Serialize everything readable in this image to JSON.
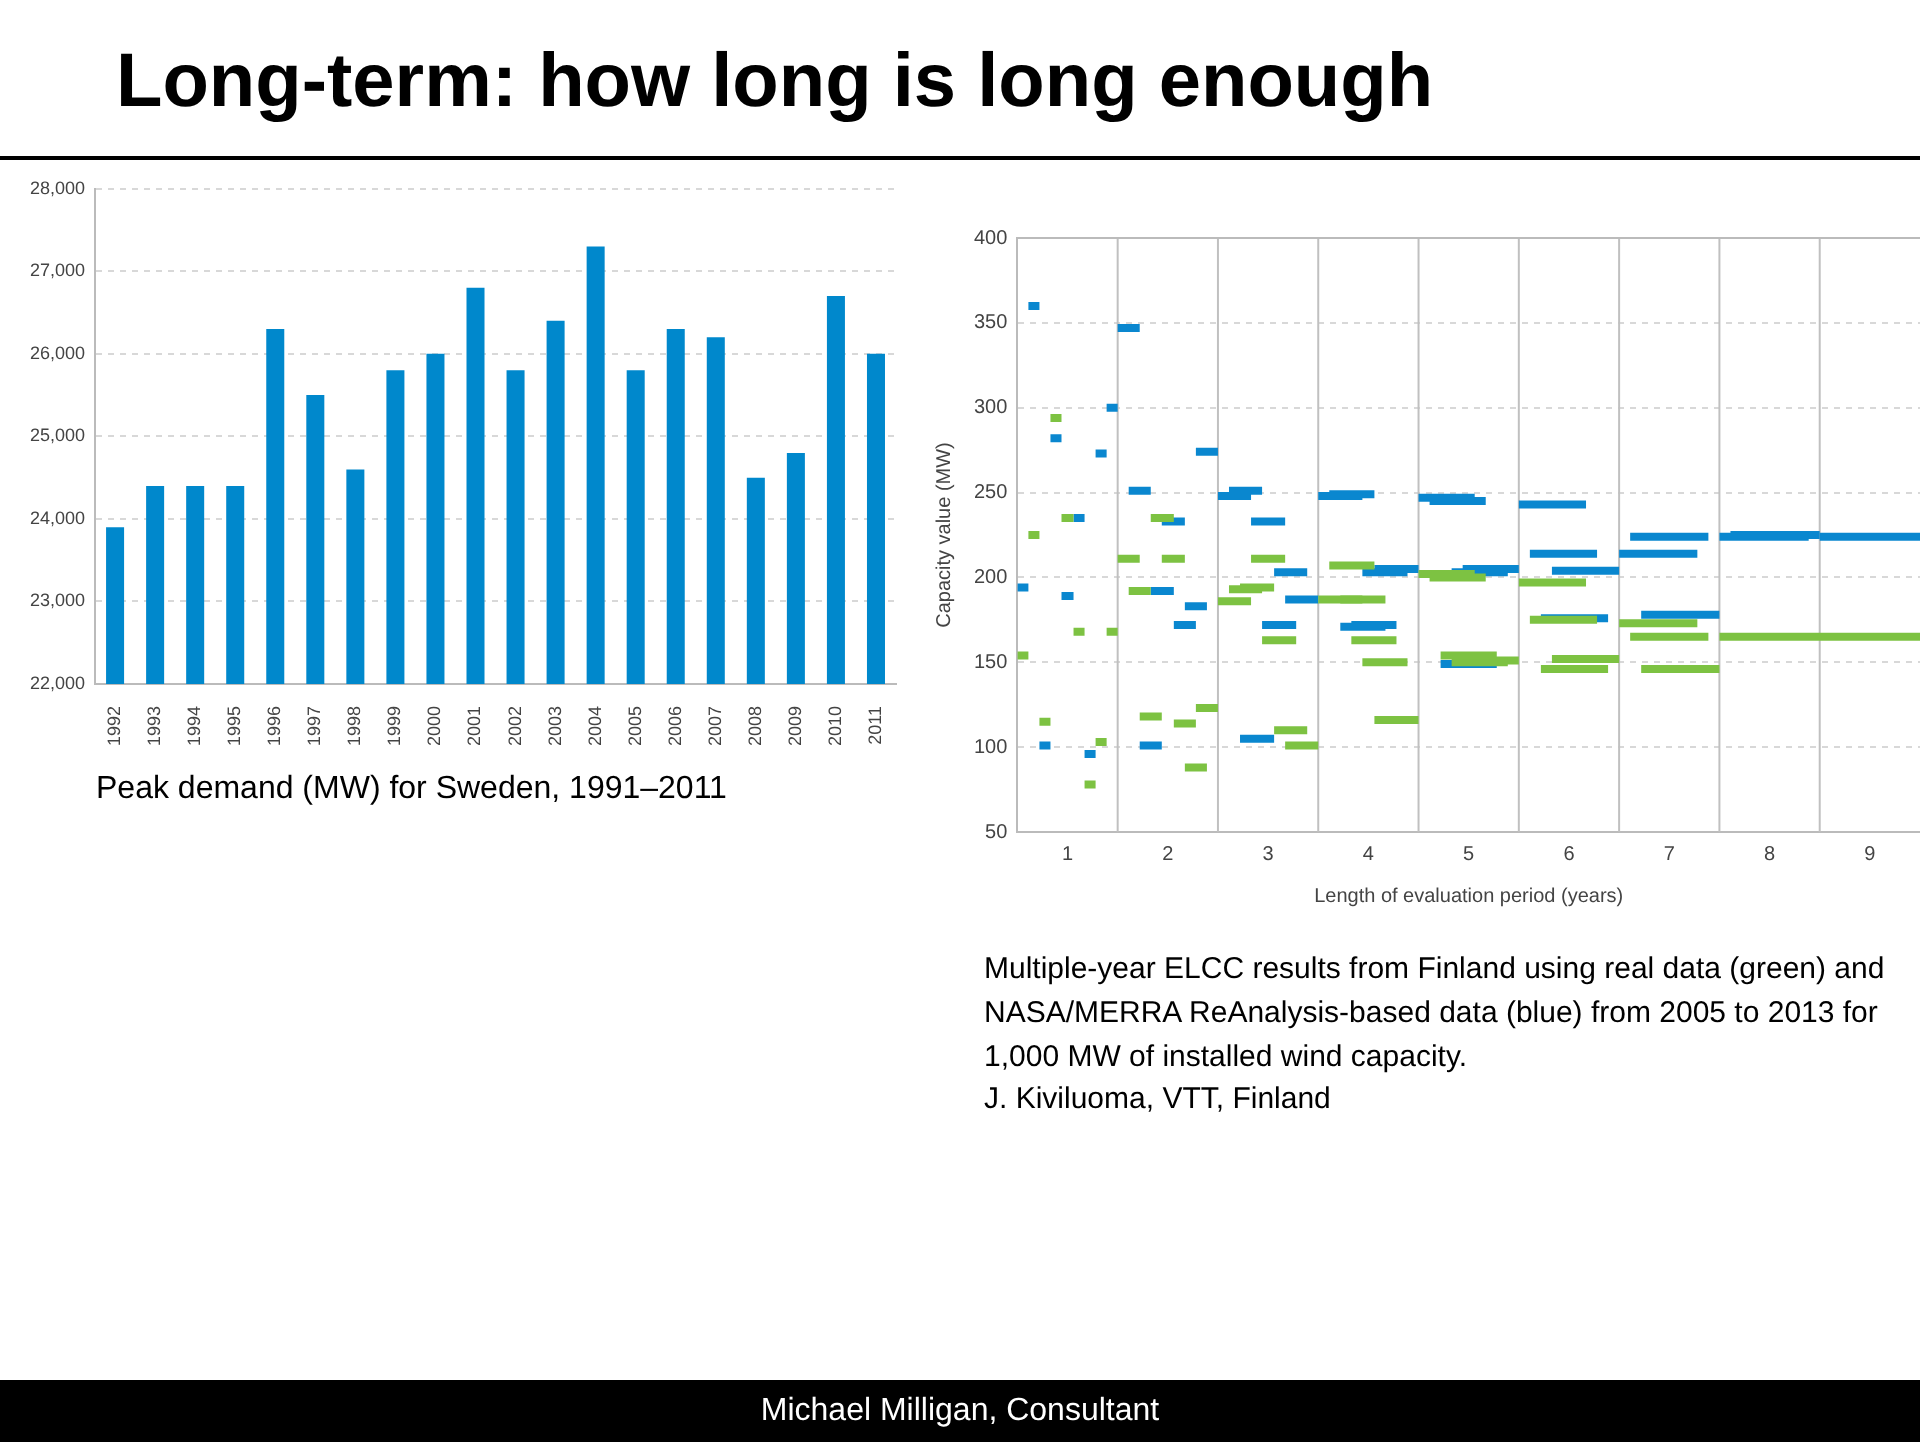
{
  "chart_data": [
    {
      "type": "bar",
      "title": "Long-term: how long is long enough",
      "categories": [
        "1992",
        "1993",
        "1994",
        "1995",
        "1996",
        "1997",
        "1998",
        "1999",
        "2000",
        "2001",
        "2002",
        "2003",
        "2004",
        "2005",
        "2006",
        "2007",
        "2008",
        "2009",
        "2010",
        "2011"
      ],
      "values": [
        23900,
        24400,
        24400,
        24400,
        26300,
        25500,
        24600,
        25800,
        26000,
        26800,
        25800,
        26400,
        27300,
        25800,
        26300,
        26200,
        24500,
        24800,
        26700,
        26000
      ],
      "color": "#0088cc",
      "ylim": [
        22000,
        28000
      ],
      "yticks": [
        {
          "value": 22000,
          "label": "22,000"
        },
        {
          "value": 23000,
          "label": "23,000"
        },
        {
          "value": 24000,
          "label": "24,000"
        },
        {
          "value": 25000,
          "label": "25,000"
        },
        {
          "value": 26000,
          "label": "26,000"
        },
        {
          "value": 27000,
          "label": "27,000"
        },
        {
          "value": 28000,
          "label": "28,000"
        }
      ],
      "grid": "y",
      "annotations": [
        "Peak demand (MW) for Sweden, 1991–2011"
      ]
    },
    {
      "type": "line",
      "xlabel": "Length of evaluation period (years)",
      "ylabel": "Capacity value (MW)",
      "xlim": [
        0.5,
        9.5
      ],
      "xticks": [
        1,
        2,
        3,
        4,
        5,
        6,
        7,
        8,
        9
      ],
      "ylim": [
        50,
        400
      ],
      "yticks": [
        50,
        100,
        150,
        200,
        250,
        300,
        350,
        400
      ],
      "grid": "y",
      "ref_lines": [
        {
          "axis": "x",
          "value": 1.5,
          "color": "#c0c0c0"
        },
        {
          "axis": "x",
          "value": 2.5,
          "color": "#c0c0c0"
        },
        {
          "axis": "x",
          "value": 3.5,
          "color": "#c0c0c0"
        },
        {
          "axis": "x",
          "value": 4.5,
          "color": "#c0c0c0"
        },
        {
          "axis": "x",
          "value": 5.5,
          "color": "#c0c0c0"
        },
        {
          "axis": "x",
          "value": 6.5,
          "color": "#c0c0c0"
        },
        {
          "axis": "x",
          "value": 7.5,
          "color": "#c0c0c0"
        },
        {
          "axis": "x",
          "value": 8.5,
          "color": "#c0c0c0"
        }
      ],
      "series": [
        {
          "type": "line",
          "color": "#7dc242",
          "x": [
            0.5,
            0.61
          ],
          "values": [
            154,
            154
          ]
        },
        {
          "type": "line",
          "color": "#7dc242",
          "x": [
            0.61,
            0.72
          ],
          "values": [
            225,
            225
          ]
        },
        {
          "type": "line",
          "color": "#7dc242",
          "x": [
            0.72,
            0.83
          ],
          "values": [
            115,
            115
          ]
        },
        {
          "type": "line",
          "color": "#7dc242",
          "x": [
            0.83,
            0.94
          ],
          "values": [
            294,
            294
          ]
        },
        {
          "type": "line",
          "color": "#7dc242",
          "x": [
            0.94,
            1.06
          ],
          "values": [
            235,
            235
          ]
        },
        {
          "type": "line",
          "color": "#7dc242",
          "x": [
            1.06,
            1.17
          ],
          "values": [
            168,
            168
          ]
        },
        {
          "type": "line",
          "color": "#7dc242",
          "x": [
            1.17,
            1.28
          ],
          "values": [
            78,
            78
          ]
        },
        {
          "type": "line",
          "color": "#7dc242",
          "x": [
            1.28,
            1.39
          ],
          "values": [
            103,
            103
          ]
        },
        {
          "type": "line",
          "color": "#7dc242",
          "x": [
            1.39,
            1.5
          ],
          "values": [
            168,
            168
          ]
        },
        {
          "type": "line",
          "color": "#7dc242",
          "x": [
            1.5,
            1.72
          ],
          "values": [
            211,
            211
          ]
        },
        {
          "type": "line",
          "color": "#7dc242",
          "x": [
            1.61,
            1.83
          ],
          "values": [
            192,
            192
          ]
        },
        {
          "type": "line",
          "color": "#7dc242",
          "x": [
            1.72,
            1.94
          ],
          "values": [
            118,
            118
          ]
        },
        {
          "type": "line",
          "color": "#7dc242",
          "x": [
            1.83,
            2.06
          ],
          "values": [
            235,
            235
          ]
        },
        {
          "type": "line",
          "color": "#7dc242",
          "x": [
            1.94,
            2.17
          ],
          "values": [
            211,
            211
          ]
        },
        {
          "type": "line",
          "color": "#7dc242",
          "x": [
            2.06,
            2.28
          ],
          "values": [
            114,
            114
          ]
        },
        {
          "type": "line",
          "color": "#7dc242",
          "x": [
            2.17,
            2.39
          ],
          "values": [
            88,
            88
          ]
        },
        {
          "type": "line",
          "color": "#7dc242",
          "x": [
            2.28,
            2.5
          ],
          "values": [
            123,
            123
          ]
        },
        {
          "type": "line",
          "color": "#7dc242",
          "x": [
            2.5,
            2.83
          ],
          "values": [
            186,
            186
          ]
        },
        {
          "type": "line",
          "color": "#7dc242",
          "x": [
            2.61,
            2.94
          ],
          "values": [
            193,
            193
          ]
        },
        {
          "type": "line",
          "color": "#7dc242",
          "x": [
            2.72,
            3.06
          ],
          "values": [
            194,
            194
          ]
        },
        {
          "type": "line",
          "color": "#7dc242",
          "x": [
            2.83,
            3.17
          ],
          "values": [
            211,
            211
          ]
        },
        {
          "type": "line",
          "color": "#7dc242",
          "x": [
            2.94,
            3.28
          ],
          "values": [
            163,
            163
          ]
        },
        {
          "type": "line",
          "color": "#7dc242",
          "x": [
            3.06,
            3.39
          ],
          "values": [
            110,
            110
          ]
        },
        {
          "type": "line",
          "color": "#7dc242",
          "x": [
            3.17,
            3.5
          ],
          "values": [
            101,
            101
          ]
        },
        {
          "type": "line",
          "color": "#7dc242",
          "x": [
            3.5,
            3.94
          ],
          "values": [
            187,
            187
          ]
        },
        {
          "type": "line",
          "color": "#7dc242",
          "x": [
            3.61,
            4.06
          ],
          "values": [
            207,
            207
          ]
        },
        {
          "type": "line",
          "color": "#7dc242",
          "x": [
            3.72,
            4.17
          ],
          "values": [
            187,
            187
          ]
        },
        {
          "type": "line",
          "color": "#7dc242",
          "x": [
            3.83,
            4.28
          ],
          "values": [
            163,
            163
          ]
        },
        {
          "type": "line",
          "color": "#7dc242",
          "x": [
            3.94,
            4.39
          ],
          "values": [
            150,
            150
          ]
        },
        {
          "type": "line",
          "color": "#7dc242",
          "x": [
            4.06,
            4.5
          ],
          "values": [
            116,
            116
          ]
        },
        {
          "type": "line",
          "color": "#7dc242",
          "x": [
            4.5,
            5.06
          ],
          "values": [
            202,
            202
          ]
        },
        {
          "type": "line",
          "color": "#7dc242",
          "x": [
            4.61,
            5.17
          ],
          "values": [
            200,
            200
          ]
        },
        {
          "type": "line",
          "color": "#7dc242",
          "x": [
            4.72,
            5.28
          ],
          "values": [
            154,
            154
          ]
        },
        {
          "type": "line",
          "color": "#7dc242",
          "x": [
            4.83,
            5.39
          ],
          "values": [
            150,
            150
          ]
        },
        {
          "type": "line",
          "color": "#7dc242",
          "x": [
            4.94,
            5.5
          ],
          "values": [
            151,
            151
          ]
        },
        {
          "type": "line",
          "color": "#7dc242",
          "x": [
            5.5,
            6.17
          ],
          "values": [
            197,
            197
          ]
        },
        {
          "type": "line",
          "color": "#7dc242",
          "x": [
            5.61,
            6.28
          ],
          "values": [
            175,
            175
          ]
        },
        {
          "type": "line",
          "color": "#7dc242",
          "x": [
            5.72,
            6.39
          ],
          "values": [
            146,
            146
          ]
        },
        {
          "type": "line",
          "color": "#7dc242",
          "x": [
            5.83,
            6.5
          ],
          "values": [
            152,
            152
          ]
        },
        {
          "type": "line",
          "color": "#7dc242",
          "x": [
            6.5,
            7.28
          ],
          "values": [
            173,
            173
          ]
        },
        {
          "type": "line",
          "color": "#7dc242",
          "x": [
            6.61,
            7.39
          ],
          "values": [
            165,
            165
          ]
        },
        {
          "type": "line",
          "color": "#7dc242",
          "x": [
            6.72,
            7.5
          ],
          "values": [
            146,
            146
          ]
        },
        {
          "type": "line",
          "color": "#7dc242",
          "x": [
            7.5,
            8.5,
            9.5
          ],
          "values": [
            165,
            165,
            165
          ]
        },
        {
          "type": "line",
          "color": "#0a87cf",
          "x": [
            0.5,
            0.61
          ],
          "values": [
            194,
            194
          ]
        },
        {
          "type": "line",
          "color": "#0a87cf",
          "x": [
            0.61,
            0.72
          ],
          "values": [
            360,
            360
          ]
        },
        {
          "type": "line",
          "color": "#0a87cf",
          "x": [
            0.72,
            0.83
          ],
          "values": [
            101,
            101
          ]
        },
        {
          "type": "line",
          "color": "#0a87cf",
          "x": [
            0.83,
            0.94
          ],
          "values": [
            282,
            282
          ]
        },
        {
          "type": "line",
          "color": "#0a87cf",
          "x": [
            0.94,
            1.06
          ],
          "values": [
            189,
            189
          ]
        },
        {
          "type": "line",
          "color": "#0a87cf",
          "x": [
            1.06,
            1.17
          ],
          "values": [
            235,
            235
          ]
        },
        {
          "type": "line",
          "color": "#0a87cf",
          "x": [
            1.17,
            1.28
          ],
          "values": [
            96,
            96
          ]
        },
        {
          "type": "line",
          "color": "#0a87cf",
          "x": [
            1.28,
            1.39
          ],
          "values": [
            273,
            273
          ]
        },
        {
          "type": "line",
          "color": "#0a87cf",
          "x": [
            1.39,
            1.5
          ],
          "values": [
            300,
            300
          ]
        },
        {
          "type": "line",
          "color": "#0a87cf",
          "x": [
            1.5,
            1.72
          ],
          "values": [
            347,
            347
          ]
        },
        {
          "type": "line",
          "color": "#0a87cf",
          "x": [
            1.61,
            1.83
          ],
          "values": [
            251,
            251
          ]
        },
        {
          "type": "line",
          "color": "#0a87cf",
          "x": [
            1.72,
            1.94
          ],
          "values": [
            101,
            101
          ]
        },
        {
          "type": "line",
          "color": "#0a87cf",
          "x": [
            1.83,
            2.06
          ],
          "values": [
            192,
            192
          ]
        },
        {
          "type": "line",
          "color": "#0a87cf",
          "x": [
            1.94,
            2.17
          ],
          "values": [
            233,
            233
          ]
        },
        {
          "type": "line",
          "color": "#0a87cf",
          "x": [
            2.06,
            2.28
          ],
          "values": [
            172,
            172
          ]
        },
        {
          "type": "line",
          "color": "#0a87cf",
          "x": [
            2.17,
            2.39
          ],
          "values": [
            183,
            183
          ]
        },
        {
          "type": "line",
          "color": "#0a87cf",
          "x": [
            2.28,
            2.5
          ],
          "values": [
            274,
            274
          ]
        },
        {
          "type": "line",
          "color": "#0a87cf",
          "x": [
            2.5,
            2.83
          ],
          "values": [
            248,
            248
          ]
        },
        {
          "type": "line",
          "color": "#0a87cf",
          "x": [
            2.61,
            2.94
          ],
          "values": [
            251,
            251
          ]
        },
        {
          "type": "line",
          "color": "#0a87cf",
          "x": [
            2.72,
            3.06
          ],
          "values": [
            105,
            105
          ]
        },
        {
          "type": "line",
          "color": "#0a87cf",
          "x": [
            2.83,
            3.17
          ],
          "values": [
            233,
            233
          ]
        },
        {
          "type": "line",
          "color": "#0a87cf",
          "x": [
            2.94,
            3.28
          ],
          "values": [
            172,
            172
          ]
        },
        {
          "type": "line",
          "color": "#0a87cf",
          "x": [
            3.06,
            3.39
          ],
          "values": [
            203,
            203
          ]
        },
        {
          "type": "line",
          "color": "#0a87cf",
          "x": [
            3.17,
            3.5
          ],
          "values": [
            187,
            187
          ]
        },
        {
          "type": "line",
          "color": "#0a87cf",
          "x": [
            3.5,
            3.94
          ],
          "values": [
            248,
            248
          ]
        },
        {
          "type": "line",
          "color": "#0a87cf",
          "x": [
            3.61,
            4.06
          ],
          "values": [
            249,
            249
          ]
        },
        {
          "type": "line",
          "color": "#0a87cf",
          "x": [
            3.72,
            4.17
          ],
          "values": [
            171,
            171
          ]
        },
        {
          "type": "line",
          "color": "#0a87cf",
          "x": [
            3.83,
            4.28
          ],
          "values": [
            172,
            172
          ]
        },
        {
          "type": "line",
          "color": "#0a87cf",
          "x": [
            3.94,
            4.39
          ],
          "values": [
            203,
            203
          ]
        },
        {
          "type": "line",
          "color": "#0a87cf",
          "x": [
            4.06,
            4.5
          ],
          "values": [
            205,
            205
          ]
        },
        {
          "type": "line",
          "color": "#0a87cf",
          "x": [
            4.5,
            5.06
          ],
          "values": [
            247,
            247
          ]
        },
        {
          "type": "line",
          "color": "#0a87cf",
          "x": [
            4.61,
            5.17
          ],
          "values": [
            245,
            245
          ]
        },
        {
          "type": "line",
          "color": "#0a87cf",
          "x": [
            4.72,
            5.28
          ],
          "values": [
            149,
            149
          ]
        },
        {
          "type": "line",
          "color": "#0a87cf",
          "x": [
            4.83,
            5.39
          ],
          "values": [
            203,
            203
          ]
        },
        {
          "type": "line",
          "color": "#0a87cf",
          "x": [
            4.94,
            5.5
          ],
          "values": [
            205,
            205
          ]
        },
        {
          "type": "line",
          "color": "#0a87cf",
          "x": [
            5.5,
            6.17
          ],
          "values": [
            243,
            243
          ]
        },
        {
          "type": "line",
          "color": "#0a87cf",
          "x": [
            5.61,
            6.28
          ],
          "values": [
            214,
            214
          ]
        },
        {
          "type": "line",
          "color": "#0a87cf",
          "x": [
            5.72,
            6.39
          ],
          "values": [
            176,
            176
          ]
        },
        {
          "type": "line",
          "color": "#0a87cf",
          "x": [
            5.83,
            6.5
          ],
          "values": [
            204,
            204
          ]
        },
        {
          "type": "line",
          "color": "#0a87cf",
          "x": [
            6.5,
            7.28
          ],
          "values": [
            214,
            214
          ]
        },
        {
          "type": "line",
          "color": "#0a87cf",
          "x": [
            6.61,
            7.39
          ],
          "values": [
            224,
            224
          ]
        },
        {
          "type": "line",
          "color": "#0a87cf",
          "x": [
            6.72,
            7.5
          ],
          "values": [
            178,
            178
          ]
        },
        {
          "type": "line",
          "color": "#0a87cf",
          "x": [
            7.5,
            8.39
          ],
          "values": [
            224,
            224
          ]
        },
        {
          "type": "line",
          "color": "#0a87cf",
          "x": [
            7.61,
            8.5
          ],
          "values": [
            225,
            225
          ]
        },
        {
          "type": "line",
          "color": "#0a87cf",
          "x": [
            8.5,
            9.5
          ],
          "values": [
            224,
            224
          ]
        }
      ],
      "annotations": [
        "Multiple-year ELCC results from Finland using real data (green) and NASA/MERRA ReAnalysis-based data (blue) from 2005 to 2013 for 1,000 MW of installed wind capacity.",
        "J. Kiviluoma, VTT, Finland"
      ]
    },
    {
      "type": "other",
      "annotations": [
        "Michael Milligan, Consultant"
      ]
    }
  ]
}
